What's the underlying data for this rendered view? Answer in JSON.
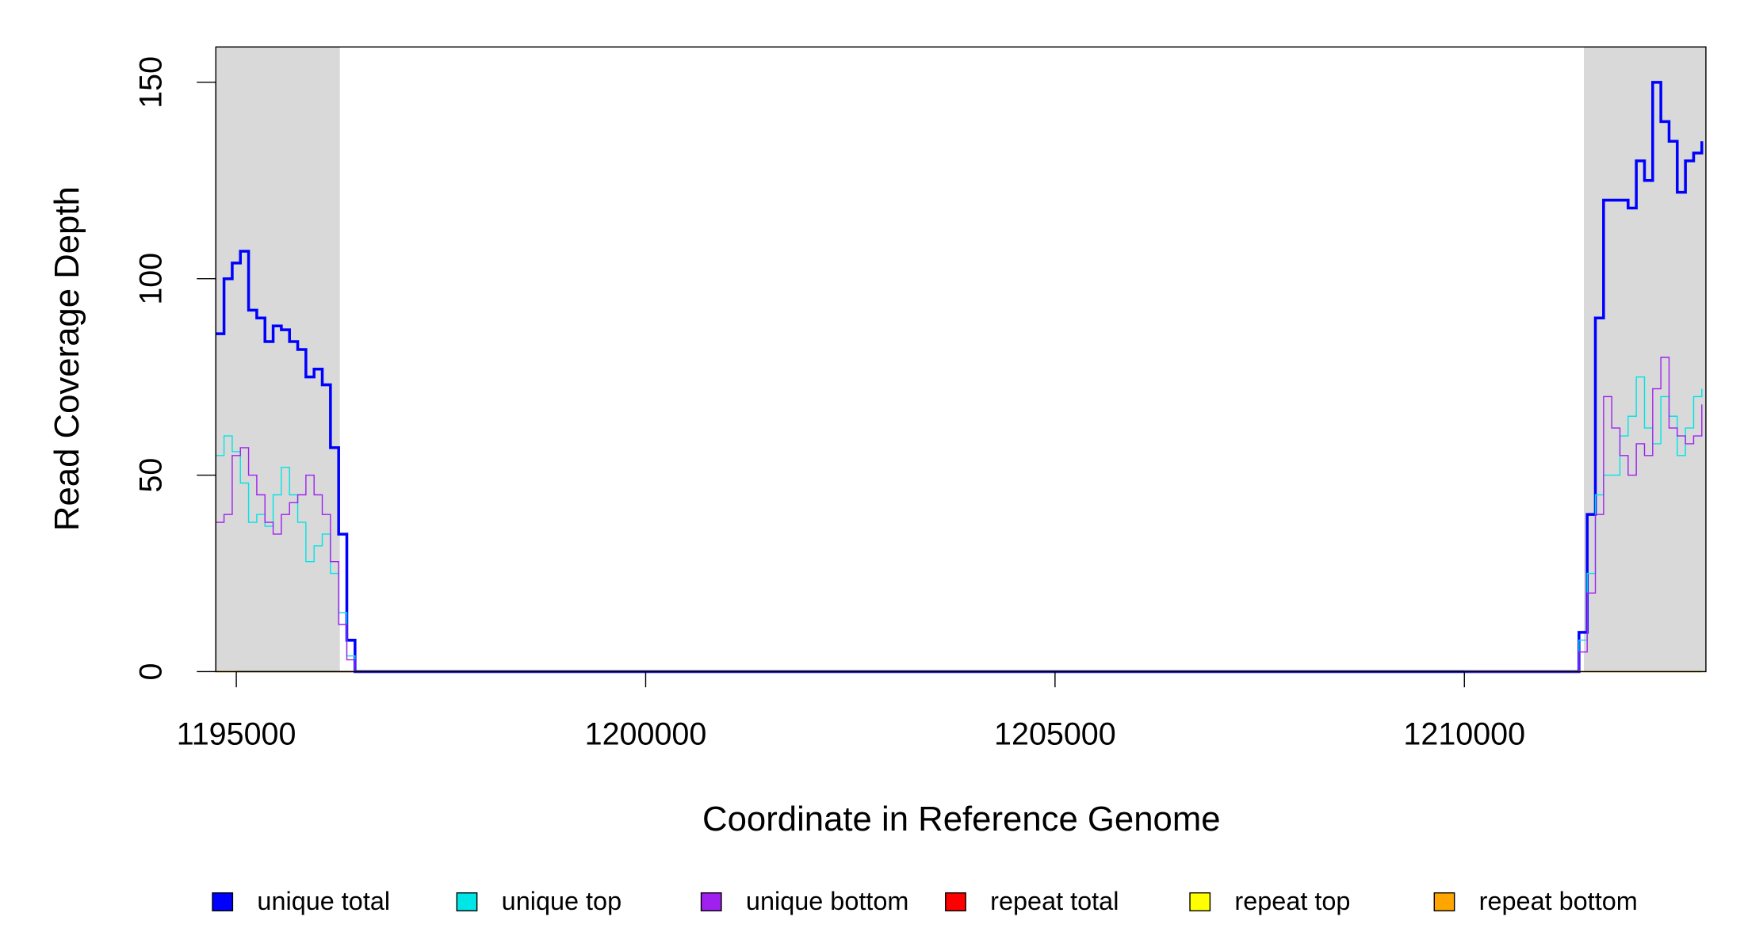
{
  "chart_data": {
    "type": "step",
    "x_label": "Coordinate in Reference Genome",
    "y_label": "Read Coverage Depth",
    "xlim": [
      1194750,
      1212950
    ],
    "ylim": [
      0,
      159
    ],
    "xticks": [
      1195000,
      1200000,
      1205000,
      1210000
    ],
    "yticks": [
      0,
      50,
      100,
      150
    ],
    "shaded_regions": [
      [
        1194750,
        1196265
      ],
      [
        1211460,
        1212950
      ]
    ],
    "shade_color": "#d9d9d9",
    "legend": "bottom",
    "x": [
      1194750,
      1194850,
      1194950,
      1195050,
      1195150,
      1195250,
      1195350,
      1195450,
      1195550,
      1195650,
      1195750,
      1195850,
      1195950,
      1196050,
      1196150,
      1196250,
      1196350,
      1196450,
      1211300,
      1211400,
      1211500,
      1211600,
      1211700,
      1211800,
      1211900,
      1212000,
      1212100,
      1212200,
      1212300,
      1212400,
      1212500,
      1212600,
      1212700,
      1212800,
      1212900
    ],
    "series": [
      {
        "name": "unique total",
        "color": "#0000ff",
        "width": 2.5,
        "values": [
          86,
          100,
          104,
          107,
          92,
          90,
          84,
          88,
          87,
          84,
          82,
          75,
          77,
          73,
          57,
          35,
          8,
          0,
          0,
          10,
          40,
          90,
          120,
          120,
          120,
          118,
          130,
          125,
          150,
          140,
          135,
          122,
          130,
          132,
          135
        ]
      },
      {
        "name": "unique top",
        "color": "#00e5e5",
        "width": 1,
        "values": [
          55,
          60,
          56,
          48,
          38,
          40,
          37,
          45,
          52,
          45,
          38,
          28,
          32,
          35,
          25,
          15,
          4,
          0,
          0,
          8,
          25,
          45,
          50,
          50,
          60,
          65,
          75,
          62,
          58,
          70,
          65,
          55,
          62,
          70,
          72
        ]
      },
      {
        "name": "unique bottom",
        "color": "#a020f0",
        "width": 1,
        "values": [
          38,
          40,
          55,
          57,
          50,
          45,
          38,
          35,
          40,
          43,
          45,
          50,
          45,
          40,
          28,
          12,
          3,
          0,
          0,
          5,
          20,
          40,
          70,
          62,
          55,
          50,
          58,
          55,
          72,
          80,
          62,
          60,
          58,
          60,
          68
        ]
      },
      {
        "name": "repeat total",
        "color": "#ff0000",
        "width": 1,
        "values": [
          0,
          0,
          0,
          0,
          0,
          0,
          0,
          0,
          0,
          0,
          0,
          0,
          0,
          0,
          0,
          0,
          0,
          0,
          0,
          0,
          0,
          0,
          0,
          0,
          0,
          0,
          0,
          0,
          0,
          0,
          0,
          0,
          0,
          0,
          0
        ]
      },
      {
        "name": "repeat top",
        "color": "#ffff00",
        "width": 1,
        "values": [
          0,
          0,
          0,
          0,
          0,
          0,
          0,
          0,
          0,
          0,
          0,
          0,
          0,
          0,
          0,
          0,
          0,
          0,
          0,
          0,
          0,
          0,
          0,
          0,
          0,
          0,
          0,
          0,
          0,
          0,
          0,
          0,
          0,
          0,
          0
        ]
      },
      {
        "name": "repeat bottom",
        "color": "#ffa500",
        "width": 1,
        "values": [
          0,
          0,
          0,
          0,
          0,
          0,
          0,
          0,
          0,
          0,
          0,
          0,
          0,
          0,
          0,
          0,
          0,
          0,
          0,
          0,
          0,
          0,
          0,
          0,
          0,
          0,
          0,
          0,
          0,
          0,
          0,
          0,
          0,
          0,
          0
        ]
      }
    ]
  }
}
